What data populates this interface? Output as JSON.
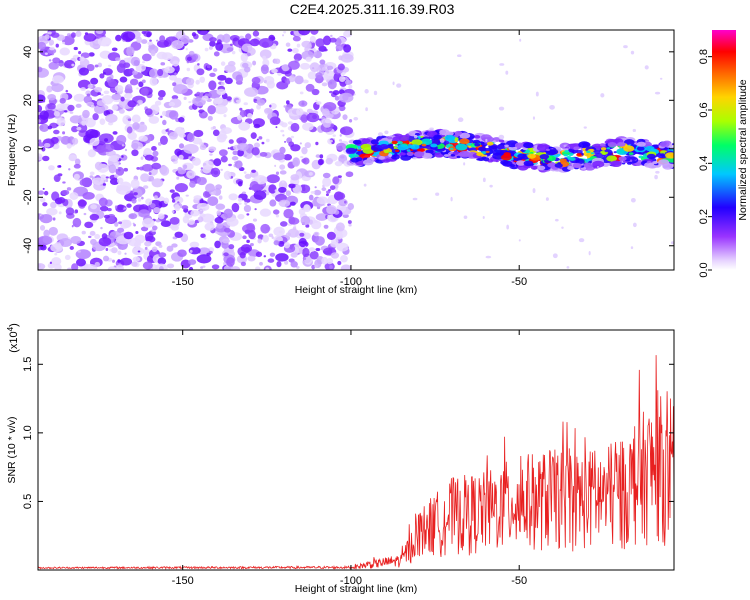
{
  "title": "C2E4.2025.311.16.39.R03",
  "chart_data": [
    {
      "type": "heatmap",
      "xlabel": "Height of straight line (km)",
      "ylabel": "Frequency (Hz)",
      "xlim": [
        -193,
        -4
      ],
      "ylim": [
        -50,
        49
      ],
      "xticks": [
        -150,
        -100,
        -50
      ],
      "xtick_labels": [
        "-150",
        "-100",
        "-50"
      ],
      "yticks": [
        -40,
        -20,
        0,
        20,
        40
      ],
      "ytick_labels": [
        "-40",
        "-20",
        "0",
        "20",
        "40"
      ],
      "noise_region_x": [
        -193,
        -100
      ],
      "signal_band": {
        "x": [
          -100,
          -90,
          -80,
          -70,
          -60,
          -50,
          -40,
          -30,
          -20,
          -10,
          -4
        ],
        "freq_center": [
          -2,
          0,
          2,
          2,
          0,
          -3,
          -4,
          -3,
          -1,
          -2,
          -3
        ],
        "half_width_hz": 5
      },
      "colorbar": {
        "label": "Normalized spectral amplitude",
        "range": [
          0,
          0.9
        ],
        "ticks": [
          0.0,
          0.2,
          0.4,
          0.6,
          0.8
        ],
        "tick_labels": [
          "0.0",
          "0.2",
          "0.4",
          "0.6",
          "0.8"
        ],
        "colors": [
          "#ffffff",
          "#9933ff",
          "#2200ff",
          "#00c8ff",
          "#00ff66",
          "#aaff00",
          "#ffd400",
          "#ff6600",
          "#ff0000",
          "#ff00cc"
        ]
      }
    },
    {
      "type": "line",
      "xlabel": "Height of straight line (km)",
      "ylabel": "SNR (10 * v/v)",
      "y_multiplier_label": "(x10",
      "y_multiplier_exp": "4",
      "y_multiplier_close": ")",
      "xlim": [
        -193,
        -4
      ],
      "ylim": [
        0,
        1.75
      ],
      "xticks": [
        -150,
        -100,
        -50
      ],
      "xtick_labels": [
        "-150",
        "-100",
        "-50"
      ],
      "yticks": [
        0.5,
        1.0,
        1.5
      ],
      "ytick_labels": [
        "0.5",
        "1.0",
        "1.5"
      ],
      "series": [
        {
          "name": "SNR",
          "color": "#e82020",
          "envelope_x": [
            -193,
            -100,
            -95,
            -85,
            -80,
            -75,
            -70,
            -60,
            -50,
            -40,
            -30,
            -20,
            -12,
            -8,
            -4
          ],
          "envelope_y": [
            0.02,
            0.03,
            0.08,
            0.15,
            0.55,
            0.7,
            0.85,
            0.9,
            1.05,
            1.1,
            1.1,
            1.15,
            1.5,
            1.6,
            1.15
          ]
        }
      ]
    }
  ]
}
